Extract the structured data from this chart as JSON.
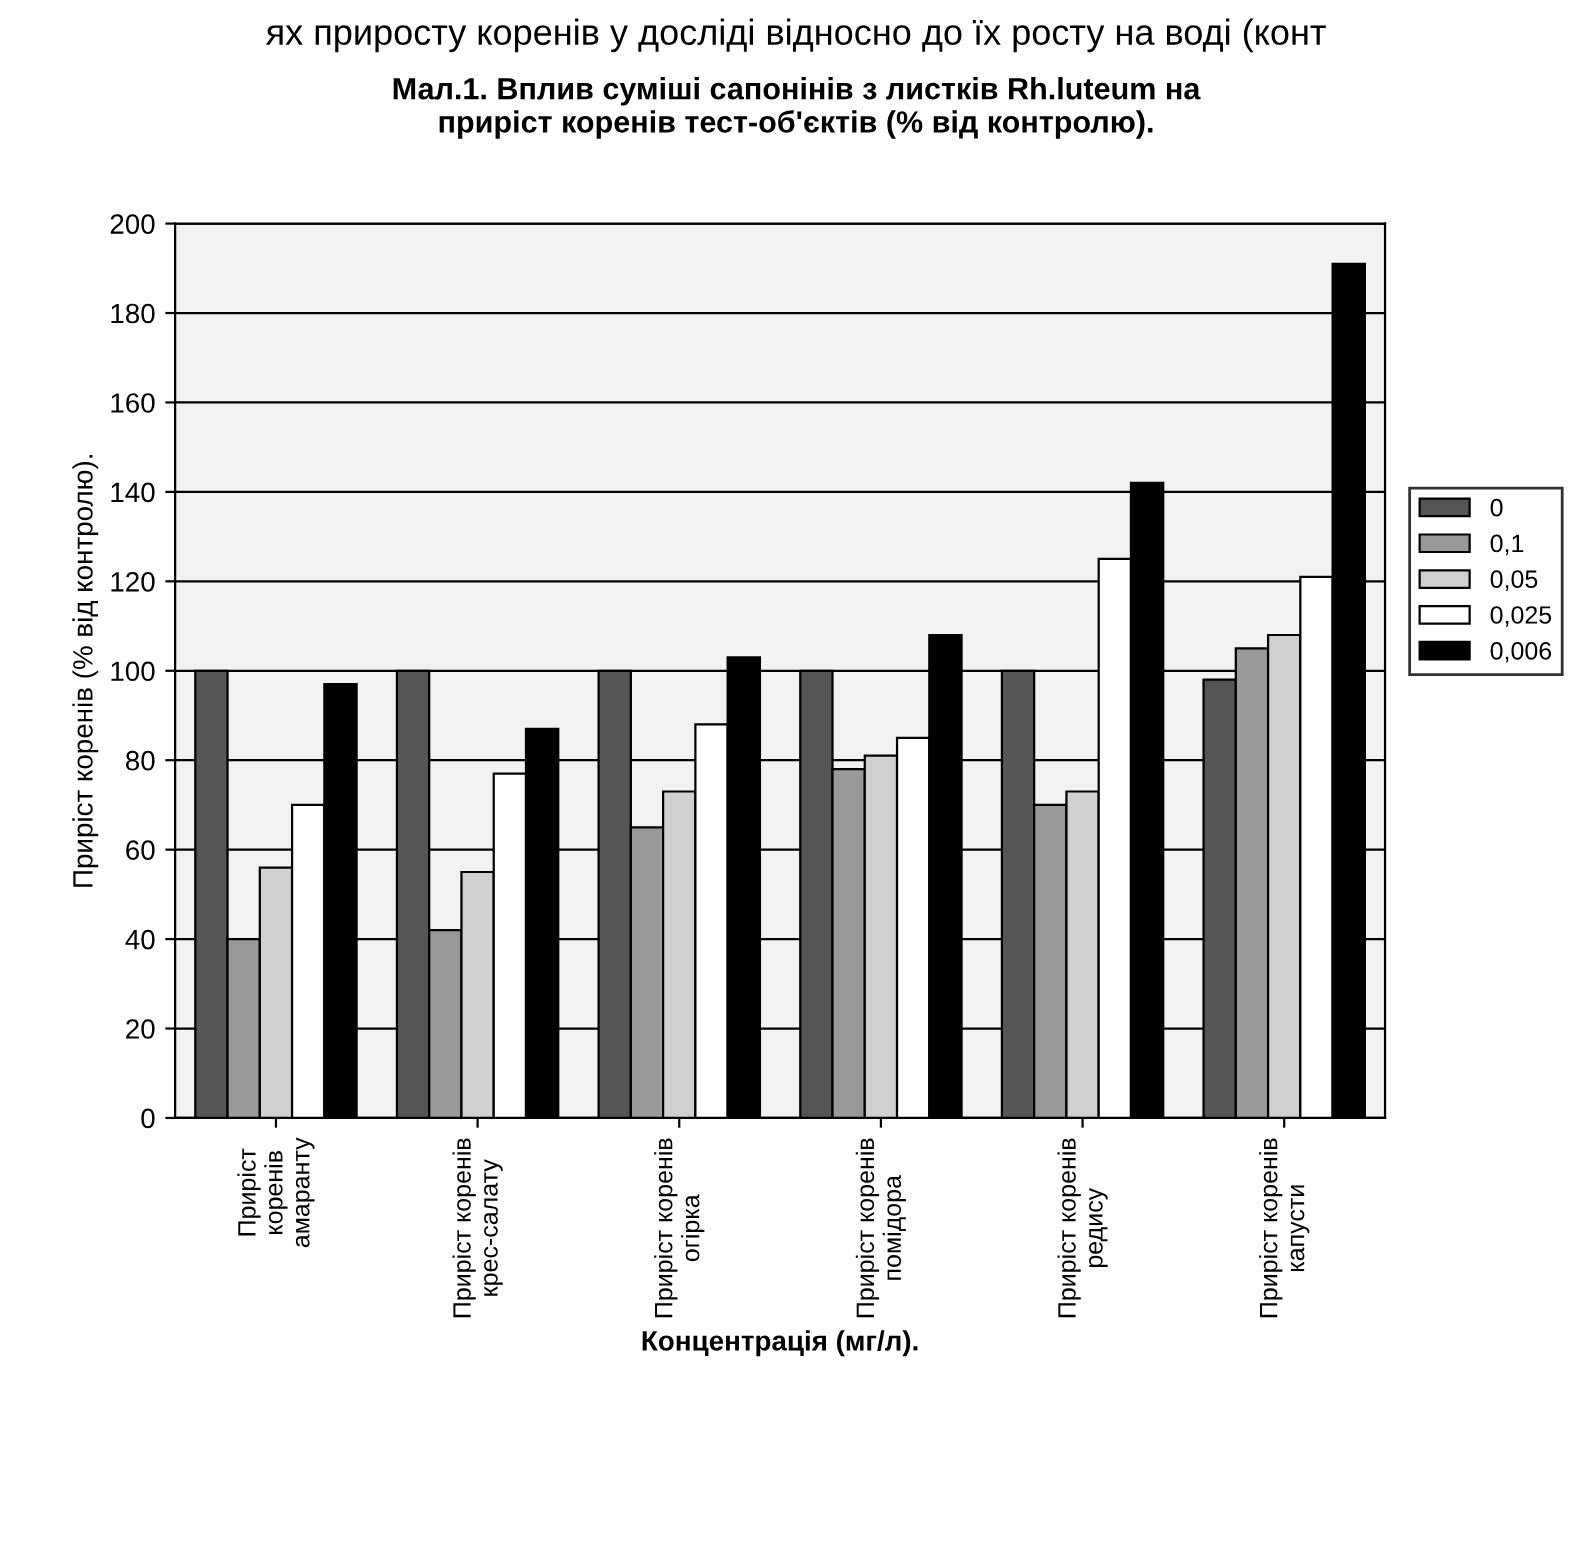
{
  "chart_data": {
    "type": "bar",
    "title": "Мал.1. Вплив суміші сапонінів з листків Rh.luteum на\nприріст коренів тест-об'єктів (% від контролю).",
    "xlabel": "Концентрація (мг/л).",
    "ylabel": "Приріст коренів (% від контролю).",
    "annotations": [
      "ях приросту коренів у досліді відносно до їх росту на воді (конт"
    ],
    "categories": [
      "Приріст\nкоренів\nамаранту",
      "Приріст коренів\nкрес-салату",
      "Приріст коренів\nогірка",
      "Приріст коренів\nпомідора",
      "Приріст коренів\nредису",
      "Приріст коренів\nкапусти"
    ],
    "series": [
      {
        "name": "0",
        "color": "#555555",
        "values": [
          100,
          100,
          100,
          100,
          100,
          98
        ]
      },
      {
        "name": "0,1",
        "color": "#999999",
        "values": [
          40,
          42,
          65,
          78,
          70,
          105
        ]
      },
      {
        "name": "0,05",
        "color": "#d0d0d0",
        "values": [
          56,
          55,
          73,
          81,
          73,
          108
        ]
      },
      {
        "name": "0,025",
        "color": "#ffffff",
        "values": [
          70,
          77,
          88,
          85,
          125,
          121
        ]
      },
      {
        "name": "0,006",
        "color": "#000000",
        "values": [
          97,
          87,
          103,
          108,
          142,
          191
        ]
      }
    ],
    "ylim": [
      0,
      200
    ],
    "yticks": [
      0,
      20,
      40,
      60,
      80,
      100,
      120,
      140,
      160,
      180,
      200
    ],
    "grid": "y",
    "legend": "right"
  }
}
